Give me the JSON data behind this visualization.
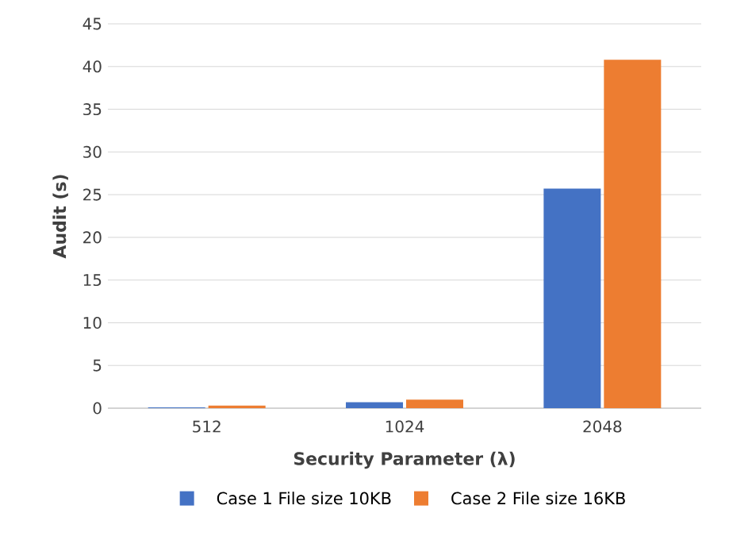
{
  "chart_data": {
    "type": "bar",
    "xlabel": "Security Parameter (λ)",
    "ylabel": "Audit (s)",
    "categories": [
      "512",
      "1024",
      "2048"
    ],
    "series": [
      {
        "name": "Case 1 File size 10KB",
        "color": "#4472c4",
        "values": [
          0.1,
          0.7,
          25.7
        ]
      },
      {
        "name": "Case 2 File size 16KB",
        "color": "#ed7d31",
        "values": [
          0.3,
          1.0,
          40.8
        ]
      }
    ],
    "ylim": [
      0,
      45
    ],
    "yticks": [
      0,
      5,
      10,
      15,
      20,
      25,
      30,
      35,
      40,
      45
    ],
    "grid": "y",
    "legend": "bottom"
  }
}
